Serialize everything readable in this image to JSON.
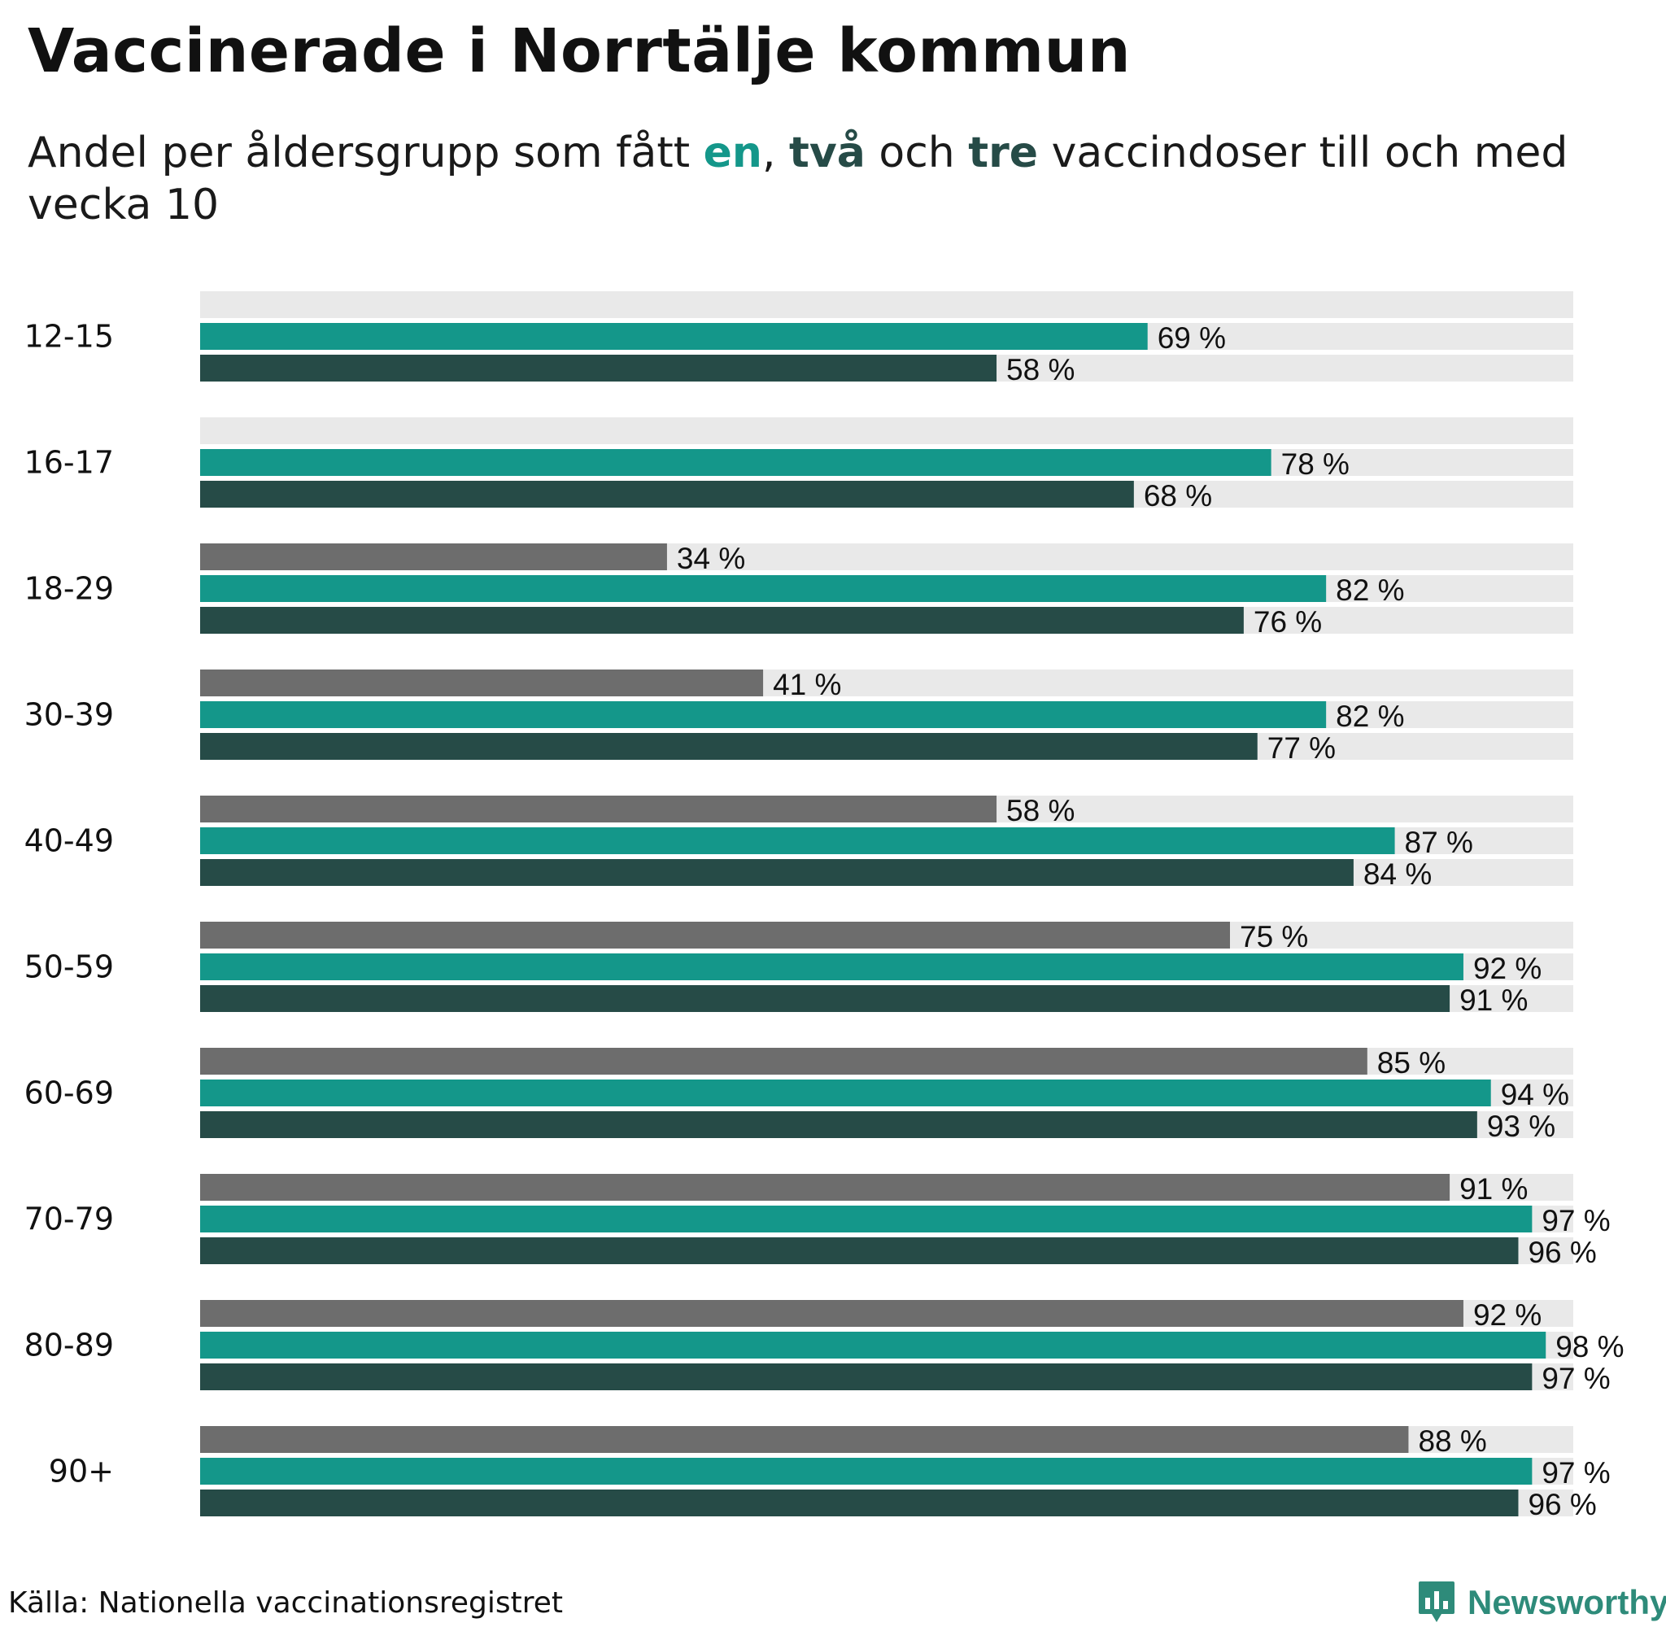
{
  "title": "Vaccinerade i Norrtälje kommun",
  "subtitle": {
    "part1": "Andel per åldersgrupp som fått ",
    "dose1": "en",
    "sep1": ", ",
    "dose2": "två",
    "sep2": " och ",
    "dose3": "tre",
    "part2": " vaccindoser till och med vecka 10"
  },
  "colors": {
    "dose1": "#14978a",
    "dose2": "#264b47",
    "dose3": "#6d6d6d",
    "track": "#e9e9e9",
    "title": "#111111",
    "logo": "#2e8b7a"
  },
  "chart_data": {
    "type": "bar",
    "orientation": "horizontal",
    "title": "Vaccinerade i Norrtälje kommun",
    "xlabel": "",
    "ylabel": "",
    "xlim": [
      0,
      100
    ],
    "value_suffix": " %",
    "categories": [
      "12-15",
      "16-17",
      "18-29",
      "30-39",
      "40-49",
      "50-59",
      "60-69",
      "70-79",
      "80-89",
      "90+"
    ],
    "series": [
      {
        "name": "tre",
        "color": "#6d6d6d",
        "values": [
          null,
          null,
          34,
          41,
          58,
          75,
          85,
          91,
          92,
          88
        ]
      },
      {
        "name": "en",
        "color": "#14978a",
        "values": [
          69,
          78,
          82,
          82,
          87,
          92,
          94,
          97,
          98,
          97
        ]
      },
      {
        "name": "två",
        "color": "#264b47",
        "values": [
          58,
          68,
          76,
          77,
          84,
          91,
          93,
          96,
          97,
          96
        ]
      }
    ]
  },
  "footer": {
    "source": "Källa: Nationella vaccinationsregistret",
    "logo_text": "Newsworthy",
    "logo_icon": "bar-chart-icon"
  }
}
